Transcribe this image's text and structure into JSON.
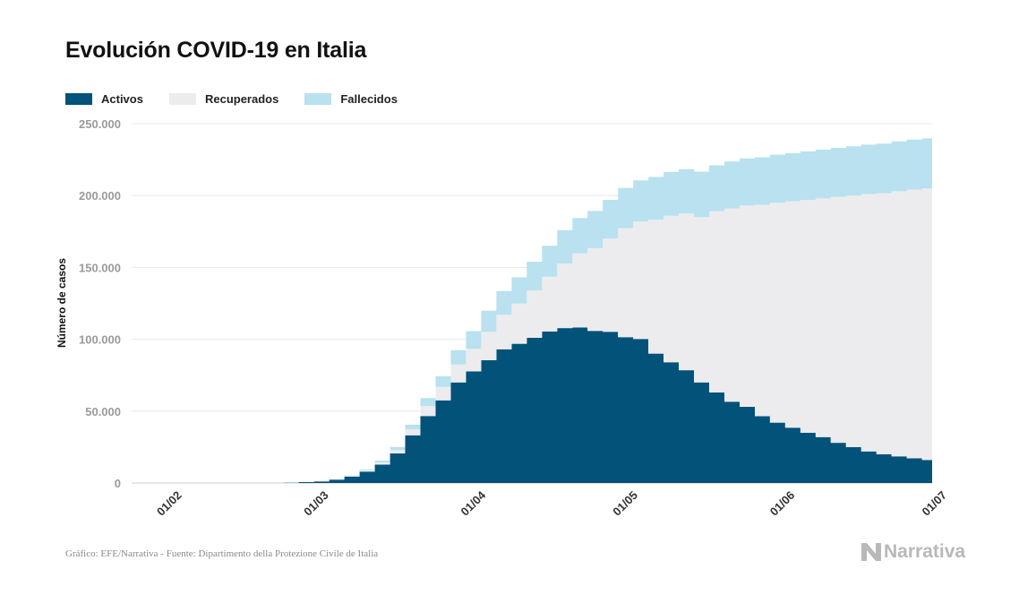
{
  "title": "Evolución COVID-19 en Italia",
  "legend": [
    {
      "label": "Activos",
      "color": "#02527a"
    },
    {
      "label": "Recuperados",
      "color": "#ececee"
    },
    {
      "label": "Fallecidos",
      "color": "#b9e1ef"
    }
  ],
  "footer": "Gráfico: EFE/Narrativa - Fuente: Dipartimento della Protezione Civile de Italia",
  "brand": "Narrativa",
  "chart_data": {
    "type": "area",
    "stacked": true,
    "step": true,
    "ylabel": "Número de casos",
    "ylim": [
      0,
      250000
    ],
    "yticks": [
      0,
      50000,
      100000,
      150000,
      200000,
      250000
    ],
    "ytick_labels": [
      "0",
      "50.000",
      "100.000",
      "150.000",
      "200.000",
      "250.000"
    ],
    "x_start": "2020-01-25",
    "x_end": "2020-07-01",
    "xticks": [
      "2020-02-01",
      "2020-03-01",
      "2020-04-01",
      "2020-05-01",
      "2020-06-01",
      "2020-07-01"
    ],
    "xtick_labels": [
      "01/02",
      "01/03",
      "01/04",
      "01/05",
      "01/06",
      "01/07"
    ],
    "grid": "horizontal",
    "legend_position": "top-left",
    "x": [
      "2020-02-24",
      "2020-02-27",
      "2020-03-01",
      "2020-03-04",
      "2020-03-07",
      "2020-03-10",
      "2020-03-13",
      "2020-03-16",
      "2020-03-19",
      "2020-03-22",
      "2020-03-25",
      "2020-03-28",
      "2020-03-31",
      "2020-04-03",
      "2020-04-06",
      "2020-04-09",
      "2020-04-12",
      "2020-04-15",
      "2020-04-18",
      "2020-04-21",
      "2020-04-24",
      "2020-04-27",
      "2020-04-30",
      "2020-05-03",
      "2020-05-06",
      "2020-05-09",
      "2020-05-12",
      "2020-05-15",
      "2020-05-18",
      "2020-05-21",
      "2020-05-24",
      "2020-05-27",
      "2020-05-30",
      "2020-06-02",
      "2020-06-05",
      "2020-06-08",
      "2020-06-11",
      "2020-06-14",
      "2020-06-17",
      "2020-06-20",
      "2020-06-23",
      "2020-06-26",
      "2020-06-29",
      "2020-07-01"
    ],
    "series": [
      {
        "name": "Activos",
        "values": [
          200,
          600,
          1100,
          2300,
          4500,
          8000,
          12800,
          20600,
          33200,
          46600,
          57500,
          70000,
          77600,
          85400,
          93100,
          96900,
          101000,
          105400,
          107800,
          108200,
          105800,
          105200,
          101500,
          100200,
          90000,
          84000,
          78500,
          70000,
          63000,
          56600,
          53000,
          46500,
          42000,
          38500,
          35000,
          32000,
          28000,
          25000,
          22000,
          20000,
          18500,
          17200,
          16000,
          15500
        ]
      },
      {
        "name": "Recuperados",
        "values": [
          0,
          50,
          80,
          400,
          600,
          1000,
          1500,
          2300,
          4000,
          7000,
          9400,
          12400,
          15700,
          19800,
          24000,
          27900,
          33000,
          38100,
          44900,
          51600,
          57600,
          64900,
          75900,
          81700,
          93200,
          102000,
          109000,
          115000,
          126000,
          134500,
          140000,
          147000,
          153000,
          157500,
          162000,
          166000,
          171000,
          175000,
          179000,
          181500,
          184500,
          187000,
          189000,
          190000
        ]
      },
      {
        "name": "Fallecidos",
        "values": [
          10,
          20,
          40,
          100,
          230,
          630,
          1270,
          2160,
          3400,
          5470,
          7500,
          10000,
          12400,
          14700,
          16500,
          18300,
          19900,
          21600,
          23200,
          24600,
          25900,
          26900,
          27900,
          28700,
          29700,
          30400,
          30900,
          31600,
          32000,
          32500,
          32900,
          33100,
          33400,
          33500,
          33700,
          33900,
          34100,
          34300,
          34400,
          34600,
          34700,
          34700,
          34800,
          34800
        ]
      }
    ]
  }
}
